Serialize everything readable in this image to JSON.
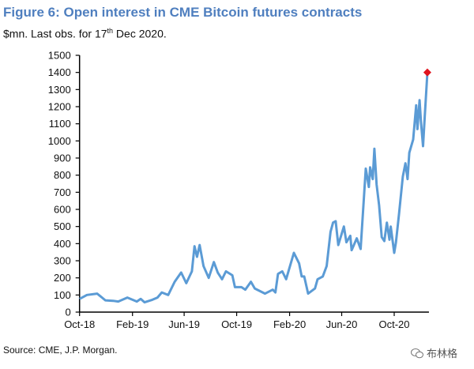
{
  "chart_data": {
    "type": "line",
    "title": "Figure 6: Open interest in CME Bitcoin futures contracts",
    "subtitle_pre": "$mn. Last obs. for 17",
    "subtitle_sup": "th",
    "subtitle_post": " Dec 2020.",
    "source": "Source: CME, J.P. Morgan.",
    "xlabel": "",
    "ylabel": "",
    "ylim": [
      0,
      1500
    ],
    "yticks": [
      0,
      100,
      200,
      300,
      400,
      500,
      600,
      700,
      800,
      900,
      1000,
      1100,
      1200,
      1300,
      1400,
      1500
    ],
    "xticks": [
      {
        "label": "Oct-18",
        "date": "2018-10-01"
      },
      {
        "label": "Feb-19",
        "date": "2019-02-01"
      },
      {
        "label": "Jun-19",
        "date": "2019-06-01"
      },
      {
        "label": "Oct-19",
        "date": "2019-10-01"
      },
      {
        "label": "Feb-20",
        "date": "2020-02-01"
      },
      {
        "label": "Jun-20",
        "date": "2020-06-01"
      },
      {
        "label": "Oct-20",
        "date": "2020-10-01"
      }
    ],
    "grid": false,
    "line_color": "#5b9bd5",
    "marker_color": "#e0141e",
    "last_point": {
      "date": "2020-12-17",
      "value": 1400
    },
    "series": [
      {
        "x": [
          "2018-10-01",
          "2018-10-18",
          "2018-11-11",
          "2018-11-30",
          "2018-12-18",
          "2018-12-30",
          "2019-01-20",
          "2019-02-11",
          "2019-02-20",
          "2019-03-01",
          "2019-03-19",
          "2019-03-31",
          "2019-04-10",
          "2019-04-25",
          "2019-05-10",
          "2019-05-25",
          "2019-06-06",
          "2019-06-19",
          "2019-06-25",
          "2019-07-01",
          "2019-07-07",
          "2019-07-16",
          "2019-07-28",
          "2019-08-09",
          "2019-08-18",
          "2019-08-28",
          "2019-09-06",
          "2019-09-21",
          "2019-09-27",
          "2019-10-12",
          "2019-10-21",
          "2019-11-03",
          "2019-11-12",
          "2019-12-06",
          "2019-12-24",
          "2019-12-30",
          "2020-01-05",
          "2020-01-15",
          "2020-01-24",
          "2020-02-02",
          "2020-02-11",
          "2020-02-23",
          "2020-02-29",
          "2020-03-06",
          "2020-03-15",
          "2020-03-31",
          "2020-04-06",
          "2020-04-18",
          "2020-04-27",
          "2020-05-06",
          "2020-05-12",
          "2020-05-18",
          "2020-05-24",
          "2020-06-06",
          "2020-06-12",
          "2020-06-21",
          "2020-06-24",
          "2020-07-06",
          "2020-07-15",
          "2020-07-27",
          "2020-08-03",
          "2020-08-06",
          "2020-08-12",
          "2020-08-16",
          "2020-08-21",
          "2020-08-27",
          "2020-09-02",
          "2020-09-08",
          "2020-09-14",
          "2020-09-20",
          "2020-09-23",
          "2020-10-01",
          "2020-10-05",
          "2020-10-12",
          "2020-10-21",
          "2020-10-27",
          "2020-11-01",
          "2020-11-05",
          "2020-11-14",
          "2020-11-21",
          "2020-11-24",
          "2020-11-29",
          "2020-12-02",
          "2020-12-07",
          "2020-12-11",
          "2020-12-17"
        ],
        "values": [
          77,
          100,
          108,
          69,
          66,
          62,
          85,
          62,
          77,
          57,
          72,
          85,
          115,
          100,
          177,
          231,
          169,
          238,
          385,
          323,
          392,
          269,
          200,
          292,
          231,
          192,
          238,
          215,
          146,
          146,
          131,
          177,
          138,
          108,
          131,
          115,
          223,
          238,
          192,
          269,
          346,
          285,
          208,
          208,
          108,
          138,
          192,
          208,
          269,
          469,
          523,
          531,
          392,
          500,
          408,
          446,
          362,
          431,
          369,
          838,
          731,
          846,
          777,
          954,
          746,
          623,
          438,
          415,
          523,
          423,
          500,
          346,
          408,
          569,
          792,
          869,
          777,
          931,
          1008,
          1208,
          1069,
          1238,
          1115,
          969,
          1146,
          1400
        ]
      }
    ]
  },
  "watermark": {
    "icon": "wechat-icon",
    "text": "布林格"
  }
}
